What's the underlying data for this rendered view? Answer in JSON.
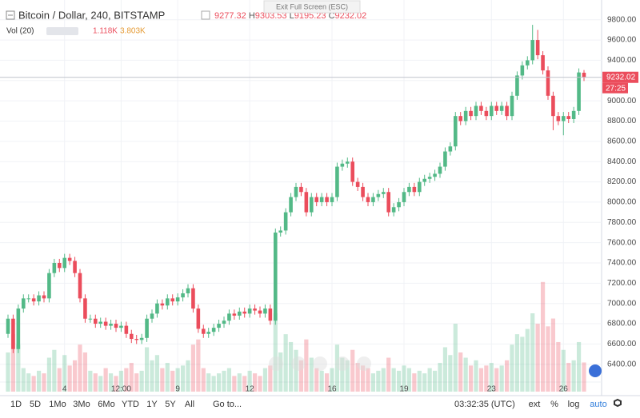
{
  "header": {
    "title": "Bitcoin / Dollar, 240, BITSTAMP",
    "ohlc_letters": [
      "H",
      "L",
      "C"
    ],
    "fullscreen_hint": "Exit Full Screen (ESC)",
    "volume_title": "Vol (20)",
    "volume_readout": [
      {
        "value": 1118,
        "label": "1.118K"
      },
      {
        "value": 3803,
        "label": "3.803K"
      }
    ],
    "countdown": "27:25"
  },
  "toolbar": {
    "ranges": [
      "1D",
      "5D",
      "1Mo",
      "3Mo",
      "6Mo",
      "YTD",
      "1Y",
      "5Y",
      "All"
    ],
    "goto": "Go to...",
    "clock": "03:32:35 (UTC)",
    "options": [
      "ext",
      "%",
      "log",
      "auto"
    ]
  },
  "chart_data": {
    "type": "candlestick",
    "up_color": "#53b987",
    "down_color": "#eb4d5c",
    "grid": true,
    "log_scale": false,
    "ylim": [
      6130,
      9995
    ],
    "y2lim": [
      0,
      15000
    ],
    "yticks": [
      {
        "value": 6400,
        "label": "6400.00"
      },
      {
        "value": 6600,
        "label": "6600.00"
      },
      {
        "value": 6800,
        "label": "6800.00"
      },
      {
        "value": 7000,
        "label": "7000.00"
      },
      {
        "value": 7200,
        "label": "7200.00"
      },
      {
        "value": 7400,
        "label": "7400.00"
      },
      {
        "value": 7600,
        "label": "7600.00"
      },
      {
        "value": 7800,
        "label": "7800.00"
      },
      {
        "value": 8000,
        "label": "8000.00"
      },
      {
        "value": 8200,
        "label": "8200.00"
      },
      {
        "value": 8400,
        "label": "8400.00"
      },
      {
        "value": 8600,
        "label": "8600.00"
      },
      {
        "value": 8800,
        "label": "8800.00"
      },
      {
        "value": 9000,
        "label": "9000.00"
      },
      {
        "value": 9200,
        "label": "9200.00"
      },
      {
        "value": 9400,
        "label": "9400.00"
      },
      {
        "value": 9600,
        "label": "9600.00"
      },
      {
        "value": 9800,
        "label": "9800.00"
      }
    ],
    "categories": [
      null,
      null,
      null,
      null,
      null,
      null,
      null,
      null,
      null,
      null,
      null,
      "4",
      null,
      null,
      null,
      null,
      null,
      null,
      null,
      null,
      null,
      null,
      "12:00",
      null,
      null,
      null,
      null,
      null,
      null,
      null,
      null,
      null,
      null,
      "9",
      null,
      null,
      null,
      null,
      null,
      null,
      null,
      null,
      null,
      null,
      null,
      null,
      null,
      "12",
      null,
      null,
      null,
      null,
      null,
      null,
      null,
      null,
      null,
      null,
      null,
      null,
      null,
      null,
      null,
      "16",
      null,
      null,
      null,
      null,
      null,
      null,
      null,
      null,
      null,
      null,
      null,
      null,
      null,
      "19",
      null,
      null,
      null,
      null,
      null,
      null,
      null,
      null,
      null,
      null,
      null,
      null,
      null,
      null,
      null,
      null,
      "23",
      null,
      null,
      null,
      null,
      null,
      null,
      null,
      null,
      null,
      null,
      null,
      null,
      null,
      "26",
      null,
      null,
      null,
      null
    ],
    "open": [
      6700,
      6850,
      6550,
      6950,
      7050,
      7050,
      7020,
      7080,
      7050,
      7300,
      7400,
      7350,
      7450,
      7420,
      7300,
      7050,
      6850,
      6850,
      6800,
      6820,
      6780,
      6800,
      6760,
      6780,
      6700,
      6650,
      6640,
      6660,
      6850,
      6900,
      7000,
      6980,
      7050,
      7020,
      7060,
      7100,
      7150,
      6950,
      6750,
      6700,
      6720,
      6760,
      6800,
      6830,
      6900,
      6880,
      6920,
      6900,
      6950,
      6930,
      6900,
      6950,
      6830,
      7700,
      7720,
      7900,
      8050,
      8150,
      8100,
      7900,
      8050,
      8000,
      8050,
      8000,
      8050,
      8350,
      8380,
      8400,
      8200,
      8150,
      8050,
      8000,
      8050,
      8080,
      8100,
      7900,
      7950,
      8000,
      8100,
      8150,
      8100,
      8200,
      8230,
      8250,
      8280,
      8350,
      8500,
      8550,
      8850,
      8800,
      8900,
      8850,
      8950,
      8900,
      8850,
      8950,
      8900,
      8950,
      8850,
      9050,
      9250,
      9350,
      9400,
      9600,
      9450,
      9300,
      9050,
      8850,
      8800,
      8850,
      8820,
      8900,
      9277.32
    ],
    "high": [
      6890,
      6890,
      6990,
      7090,
      7090,
      7090,
      7120,
      7120,
      7340,
      7440,
      7440,
      7490,
      7490,
      7460,
      7340,
      7090,
      6890,
      6890,
      6860,
      6860,
      6840,
      6840,
      6820,
      6820,
      6740,
      6690,
      6700,
      6890,
      6940,
      7040,
      7040,
      7090,
      7090,
      7100,
      7140,
      7190,
      7190,
      6990,
      6790,
      6760,
      6800,
      6840,
      6870,
      6940,
      6940,
      6960,
      6960,
      6990,
      6990,
      6970,
      6990,
      6990,
      7740,
      7760,
      7940,
      8090,
      8190,
      8190,
      8140,
      8090,
      8090,
      8090,
      8090,
      8090,
      8390,
      8420,
      8440,
      8440,
      8240,
      8190,
      8090,
      8090,
      8120,
      8140,
      8140,
      7990,
      8040,
      8140,
      8190,
      8190,
      8240,
      8270,
      8290,
      8320,
      8390,
      8540,
      8590,
      8890,
      8890,
      8940,
      8940,
      8990,
      8990,
      8940,
      8990,
      8990,
      8990,
      8990,
      9090,
      9290,
      9390,
      9440,
      9750,
      9700,
      9490,
      9340,
      9090,
      8890,
      8890,
      8890,
      8940,
      9320,
      9303.53
    ],
    "low": [
      6660,
      6510,
      6510,
      6910,
      7010,
      6980,
      6980,
      7010,
      7010,
      7260,
      7310,
      7310,
      7380,
      7260,
      7010,
      6810,
      6810,
      6760,
      6760,
      6740,
      6740,
      6720,
      6720,
      6660,
      6610,
      6600,
      6600,
      6620,
      6810,
      6860,
      6940,
      6940,
      6980,
      6980,
      7020,
      7060,
      6910,
      6710,
      6660,
      6660,
      6680,
      6720,
      6760,
      6790,
      6840,
      6840,
      6860,
      6860,
      6890,
      6860,
      6860,
      6790,
      6790,
      7660,
      7680,
      7860,
      8010,
      8060,
      7860,
      7860,
      7960,
      7960,
      7960,
      7960,
      8010,
      8310,
      8340,
      8160,
      8110,
      8010,
      7960,
      7960,
      8010,
      8040,
      7860,
      7860,
      7910,
      7960,
      8060,
      8060,
      8060,
      8160,
      8190,
      8210,
      8240,
      8310,
      8460,
      8510,
      8760,
      8760,
      8810,
      8810,
      8860,
      8810,
      8810,
      8860,
      8860,
      8810,
      8810,
      9010,
      9210,
      9310,
      9360,
      9410,
      9260,
      9010,
      8710,
      8760,
      8660,
      8780,
      8780,
      8860,
      9195.23
    ],
    "close": [
      6850,
      6550,
      6950,
      7050,
      7050,
      7020,
      7080,
      7050,
      7300,
      7400,
      7350,
      7450,
      7420,
      7300,
      7050,
      6850,
      6850,
      6800,
      6820,
      6780,
      6800,
      6760,
      6780,
      6700,
      6650,
      6640,
      6660,
      6850,
      6900,
      7000,
      6980,
      7050,
      7020,
      7060,
      7100,
      7150,
      6950,
      6750,
      6700,
      6720,
      6760,
      6800,
      6830,
      6900,
      6880,
      6920,
      6900,
      6950,
      6930,
      6900,
      6950,
      6830,
      7700,
      7720,
      7900,
      8050,
      8150,
      8100,
      7900,
      8050,
      8000,
      8050,
      8000,
      8050,
      8350,
      8380,
      8400,
      8200,
      8150,
      8050,
      8000,
      8050,
      8080,
      8100,
      7900,
      7950,
      8000,
      8100,
      8150,
      8100,
      8200,
      8230,
      8250,
      8280,
      8350,
      8500,
      8550,
      8850,
      8800,
      8900,
      8850,
      8950,
      8900,
      8850,
      8950,
      8900,
      8950,
      8850,
      9050,
      9250,
      9350,
      9400,
      9600,
      9450,
      9300,
      9050,
      8850,
      8800,
      8850,
      8820,
      8900,
      9280,
      9232.02
    ],
    "volume": [
      1500,
      2200,
      1800,
      900,
      700,
      600,
      800,
      700,
      1300,
      1600,
      900,
      1400,
      1000,
      1200,
      1800,
      1500,
      800,
      700,
      600,
      900,
      700,
      600,
      800,
      900,
      1100,
      700,
      800,
      1700,
      1200,
      1400,
      900,
      1100,
      800,
      900,
      1000,
      1200,
      1800,
      2000,
      900,
      700,
      600,
      700,
      800,
      900,
      600,
      700,
      600,
      800,
      700,
      600,
      900,
      1000,
      3000,
      1500,
      2200,
      1900,
      1600,
      1200,
      2000,
      1300,
      900,
      800,
      700,
      900,
      1800,
      1300,
      1200,
      1600,
      1100,
      1000,
      900,
      700,
      800,
      900,
      1300,
      900,
      800,
      1000,
      900,
      700,
      800,
      700,
      900,
      800,
      1100,
      1700,
      1400,
      2600,
      1500,
      1300,
      1000,
      1200,
      900,
      1000,
      1100,
      900,
      1000,
      1200,
      1800,
      2200,
      2100,
      2400,
      3000,
      2600,
      4200,
      2500,
      2800,
      1900,
      1600,
      1100,
      1200,
      1900,
      1118
    ]
  }
}
